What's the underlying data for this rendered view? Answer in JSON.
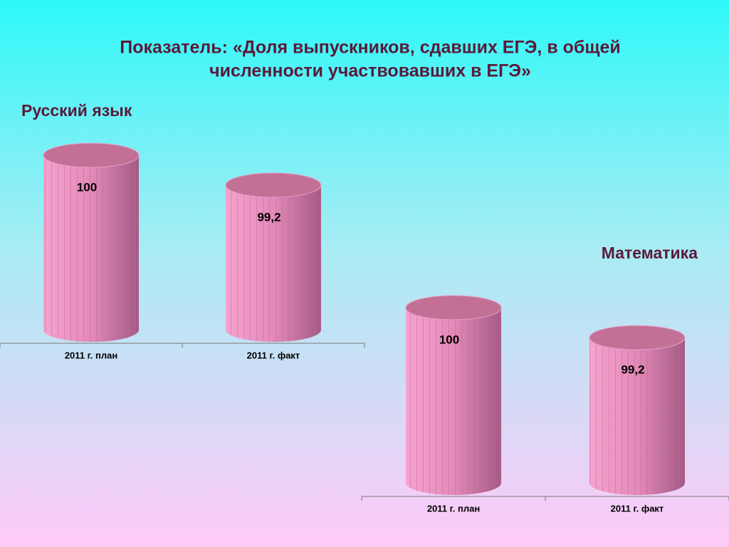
{
  "title": [
    "Показатель: «Доля выпускников, сдавших ЕГЭ, в общей",
    "численности участвовавших в ЕГЭ»"
  ],
  "chart_data": [
    {
      "type": "bar",
      "title": "Русский язык",
      "categories": [
        "2011 г. план",
        "2011 г. факт"
      ],
      "values": [
        100,
        99.2
      ],
      "value_labels": [
        "100",
        "99,2"
      ],
      "color": "#ee90c2",
      "ylim": [
        95,
        100
      ]
    },
    {
      "type": "bar",
      "title": "Математика",
      "categories": [
        "2011 г. план",
        "2011 г. факт"
      ],
      "values": [
        100,
        99.2
      ],
      "value_labels": [
        "100",
        "99,2"
      ],
      "color": "#ee90c2",
      "ylim": [
        95,
        100
      ]
    }
  ]
}
